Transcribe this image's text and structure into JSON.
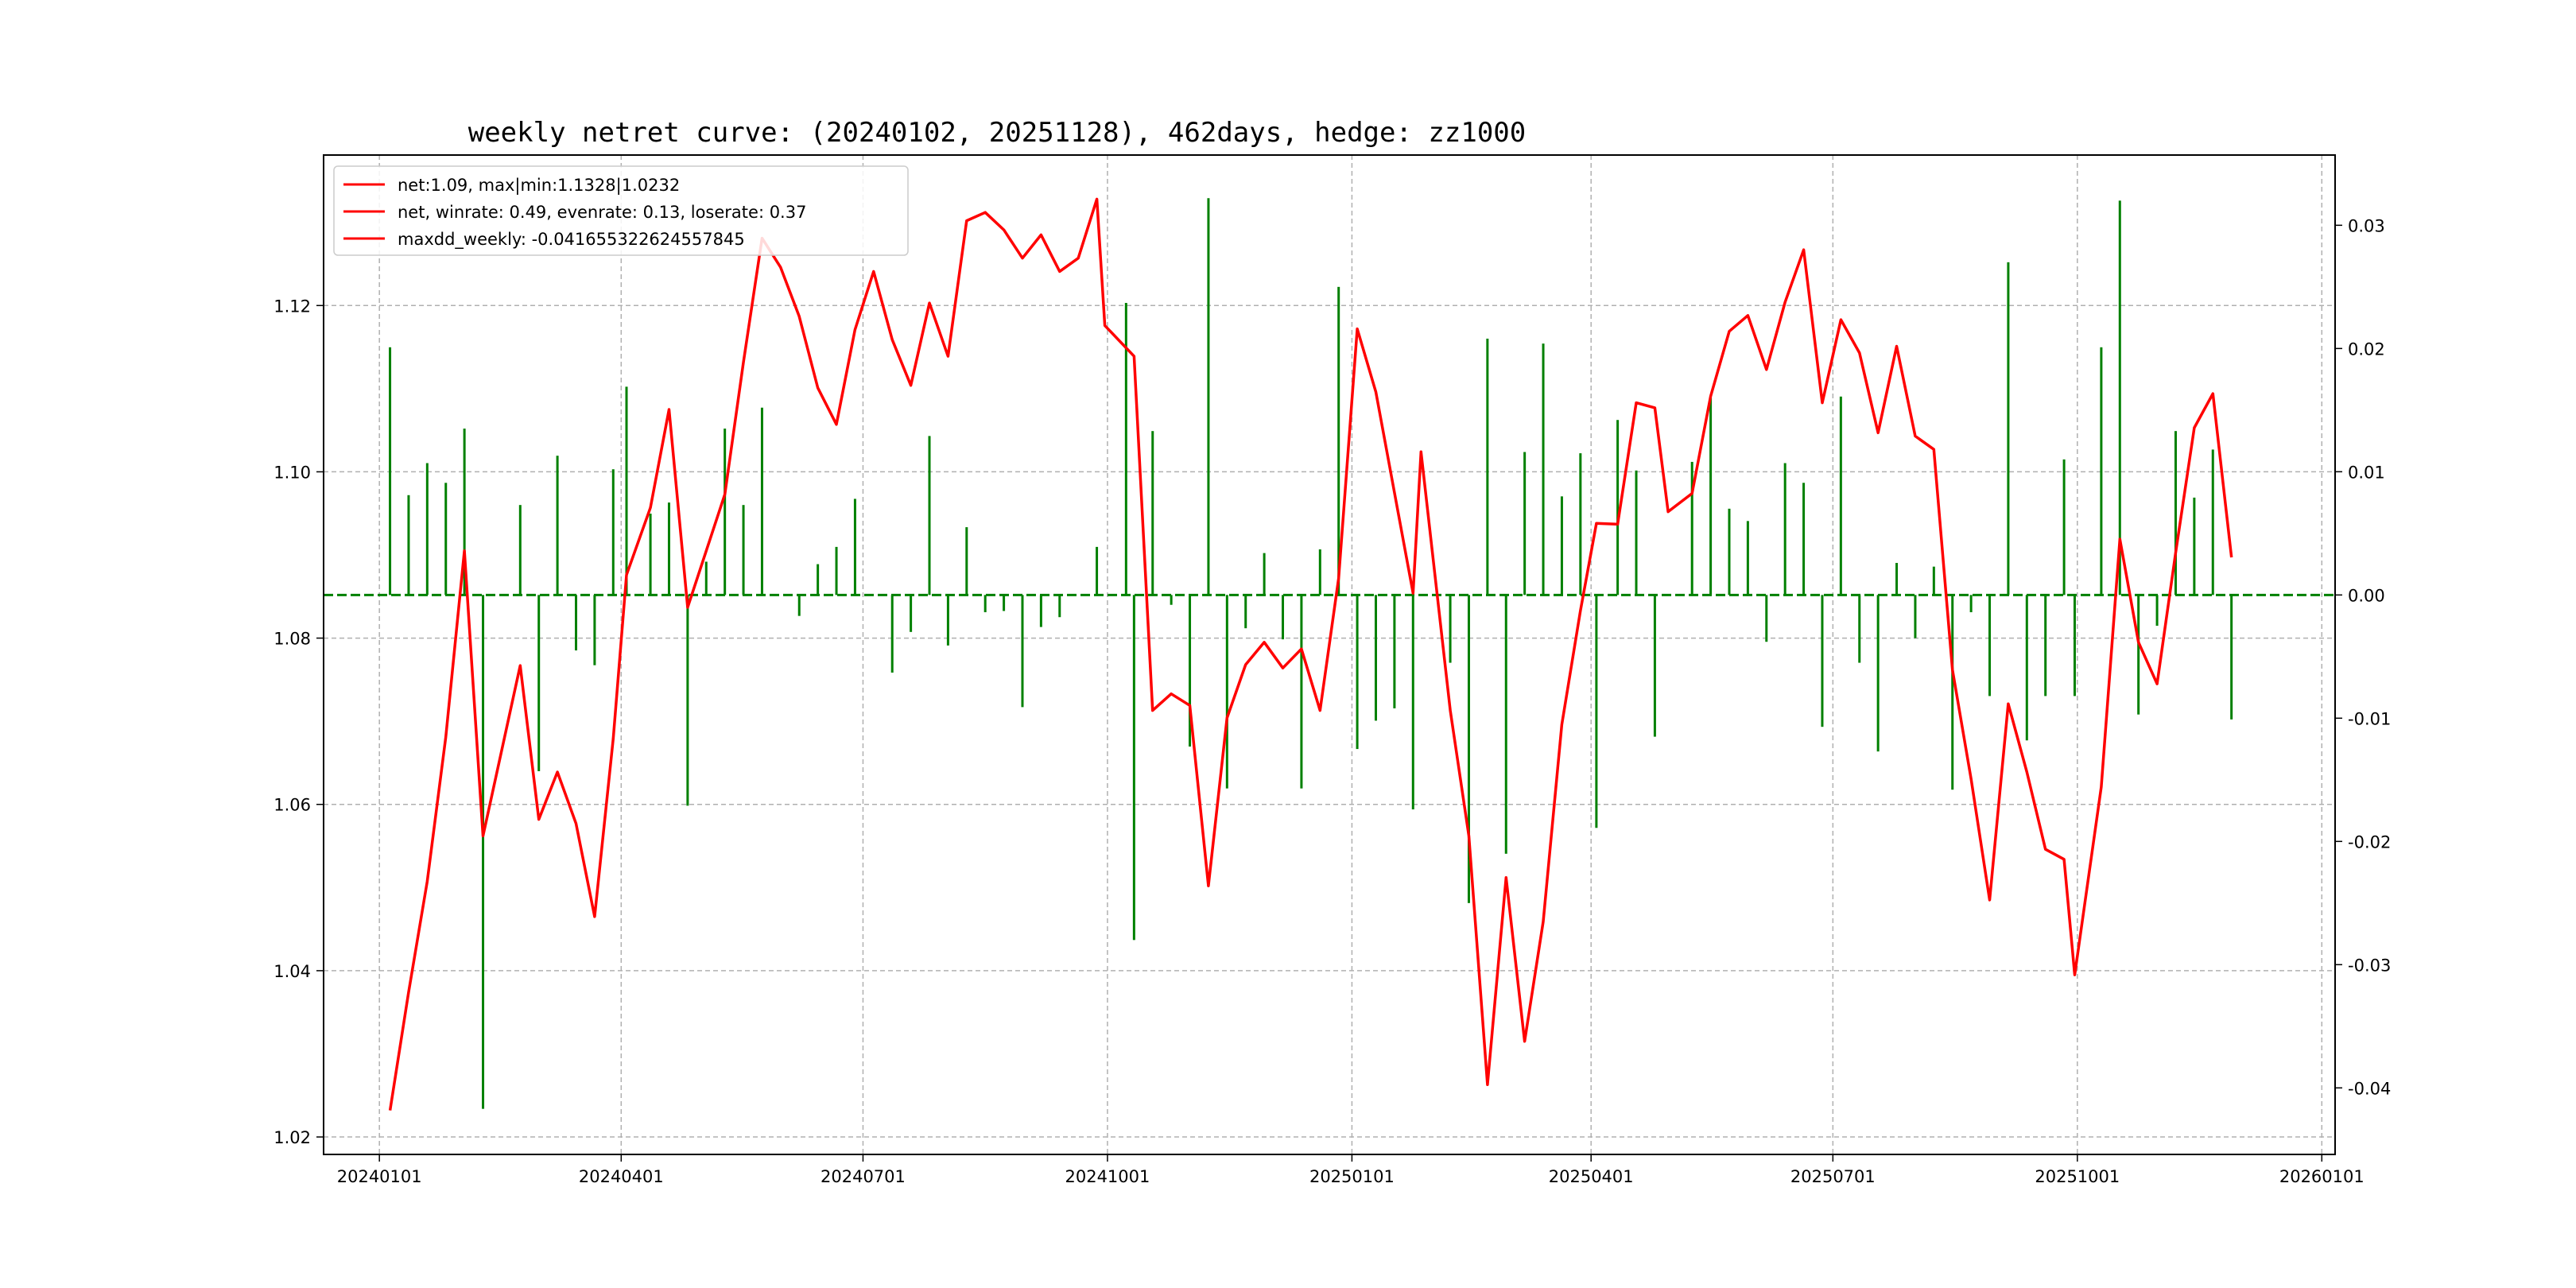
{
  "chart_data": {
    "type": "line",
    "title": "weekly netret curve: (20240102, 20251128), 462days, hedge: zz1000",
    "legend": {
      "position": "top-left",
      "entries": [
        "net:1.09, max|min:1.1328|1.0232",
        "net, winrate: 0.49, evenrate: 0.13, loserate: 0.37",
        "maxdd_weekly: -0.041655322624557845"
      ]
    },
    "x_axis": {
      "type": "date",
      "range": [
        "2023-12-11",
        "2026-01-06"
      ],
      "ticks": [
        "20240101",
        "20240401",
        "20240701",
        "20241001",
        "20250101",
        "20250401",
        "20250701",
        "20251001",
        "20260101"
      ],
      "tick_dates": [
        "2024-01-01",
        "2024-04-01",
        "2024-07-01",
        "2024-10-01",
        "2025-01-01",
        "2025-04-01",
        "2025-07-01",
        "2025-10-01",
        "2026-01-01"
      ]
    },
    "y_left": {
      "range": [
        1.0179,
        1.1381
      ],
      "ticks": [
        "1.02",
        "1.04",
        "1.06",
        "1.08",
        "1.10",
        "1.12"
      ],
      "tick_values": [
        1.02,
        1.04,
        1.06,
        1.08,
        1.1,
        1.12
      ]
    },
    "y_right": {
      "range": [
        -0.0454,
        0.0357
      ],
      "ticks": [
        "-0.04",
        "-0.03",
        "-0.02",
        "-0.01",
        "0.00",
        "0.01",
        "0.02",
        "0.03"
      ],
      "tick_values": [
        -0.04,
        -0.03,
        -0.02,
        -0.01,
        0.0,
        0.01,
        0.02,
        0.03
      ]
    },
    "grid": true,
    "colors": {
      "net_line": "#ff0000",
      "bars": "#008000",
      "zero_line": "#008000",
      "grid": "#b0b0b0"
    },
    "net_series": {
      "name": "net",
      "axis": "left",
      "points": [
        [
          "2024-01-05",
          1.0232
        ],
        [
          "2024-01-12",
          1.0374
        ],
        [
          "2024-01-19",
          1.0507
        ],
        [
          "2024-01-26",
          1.0681
        ],
        [
          "2024-02-02",
          1.0905
        ],
        [
          "2024-02-09",
          1.0562
        ],
        [
          "2024-02-23",
          1.0767
        ],
        [
          "2024-03-01",
          1.0582
        ],
        [
          "2024-03-08",
          1.0639
        ],
        [
          "2024-03-15",
          1.0577
        ],
        [
          "2024-03-22",
          1.0465
        ],
        [
          "2024-03-29",
          1.0679
        ],
        [
          "2024-04-03",
          1.0876
        ],
        [
          "2024-04-12",
          1.0957
        ],
        [
          "2024-04-19",
          1.1075
        ],
        [
          "2024-04-26",
          1.0837
        ],
        [
          "2024-05-10",
          1.0973
        ],
        [
          "2024-05-17",
          1.1132
        ],
        [
          "2024-05-24",
          1.1281
        ],
        [
          "2024-05-31",
          1.1246
        ],
        [
          "2024-06-07",
          1.1187
        ],
        [
          "2024-06-14",
          1.1101
        ],
        [
          "2024-06-21",
          1.1057
        ],
        [
          "2024-06-28",
          1.1171
        ],
        [
          "2024-07-05",
          1.1241
        ],
        [
          "2024-07-12",
          1.1159
        ],
        [
          "2024-07-19",
          1.1104
        ],
        [
          "2024-07-26",
          1.1203
        ],
        [
          "2024-08-02",
          1.1139
        ],
        [
          "2024-08-09",
          1.1302
        ],
        [
          "2024-08-16",
          1.1312
        ],
        [
          "2024-08-23",
          1.1291
        ],
        [
          "2024-08-30",
          1.1257
        ],
        [
          "2024-09-06",
          1.1285
        ],
        [
          "2024-09-13",
          1.1241
        ],
        [
          "2024-09-20",
          1.1257
        ],
        [
          "2024-09-27",
          1.1328
        ],
        [
          "2024-09-30",
          1.1176
        ],
        [
          "2024-10-11",
          1.1139
        ],
        [
          "2024-10-18",
          1.0713
        ],
        [
          "2024-10-25",
          1.0733
        ],
        [
          "2024-11-01",
          1.0719
        ],
        [
          "2024-11-08",
          1.0502
        ],
        [
          "2024-11-15",
          1.0704
        ],
        [
          "2024-11-22",
          1.0768
        ],
        [
          "2024-11-29",
          1.0795
        ],
        [
          "2024-12-06",
          1.0764
        ],
        [
          "2024-12-13",
          1.0787
        ],
        [
          "2024-12-20",
          1.0713
        ],
        [
          "2024-12-27",
          1.0872
        ],
        [
          "2025-01-03",
          1.1172
        ],
        [
          "2025-01-10",
          1.1096
        ],
        [
          "2025-01-17",
          1.0975
        ],
        [
          "2025-01-24",
          1.0854
        ],
        [
          "2025-01-27",
          1.1024
        ],
        [
          "2025-02-07",
          1.0713
        ],
        [
          "2025-02-14",
          1.0562
        ],
        [
          "2025-02-21",
          1.0263
        ],
        [
          "2025-02-28",
          1.0512
        ],
        [
          "2025-03-07",
          1.0315
        ],
        [
          "2025-03-14",
          1.0459
        ],
        [
          "2025-03-21",
          1.0696
        ],
        [
          "2025-03-28",
          1.0833
        ],
        [
          "2025-04-03",
          1.0938
        ],
        [
          "2025-04-11",
          1.0937
        ],
        [
          "2025-04-18",
          1.1083
        ],
        [
          "2025-04-25",
          1.1077
        ],
        [
          "2025-04-30",
          1.0952
        ],
        [
          "2025-05-09",
          1.0974
        ],
        [
          "2025-05-16",
          1.1091
        ],
        [
          "2025-05-23",
          1.1169
        ],
        [
          "2025-05-30",
          1.1188
        ],
        [
          "2025-06-06",
          1.1123
        ],
        [
          "2025-06-13",
          1.1204
        ],
        [
          "2025-06-20",
          1.1267
        ],
        [
          "2025-06-27",
          1.1083
        ],
        [
          "2025-07-04",
          1.1183
        ],
        [
          "2025-07-11",
          1.1143
        ],
        [
          "2025-07-18",
          1.1047
        ],
        [
          "2025-07-25",
          1.1151
        ],
        [
          "2025-08-01",
          1.1043
        ],
        [
          "2025-08-08",
          1.1027
        ],
        [
          "2025-08-15",
          1.0762
        ],
        [
          "2025-08-22",
          1.0631
        ],
        [
          "2025-08-29",
          1.0485
        ],
        [
          "2025-09-05",
          1.0721
        ],
        [
          "2025-09-12",
          1.0639
        ],
        [
          "2025-09-19",
          1.0546
        ],
        [
          "2025-09-26",
          1.0534
        ],
        [
          "2025-09-30",
          1.0395
        ],
        [
          "2025-10-10",
          1.0621
        ],
        [
          "2025-10-17",
          1.0919
        ],
        [
          "2025-10-24",
          1.0795
        ],
        [
          "2025-10-31",
          1.0745
        ],
        [
          "2025-11-07",
          1.0903
        ],
        [
          "2025-11-14",
          1.1053
        ],
        [
          "2025-11-21",
          1.1094
        ],
        [
          "2025-11-28",
          1.0897
        ]
      ]
    },
    "bar_series": {
      "name": "weekly return",
      "axis": "right",
      "points": [
        [
          "2024-01-05",
          0.0201
        ],
        [
          "2024-01-12",
          0.0081
        ],
        [
          "2024-01-19",
          0.0107
        ],
        [
          "2024-01-26",
          0.0091
        ],
        [
          "2024-02-02",
          0.0135
        ],
        [
          "2024-02-09",
          -0.0417
        ],
        [
          "2024-02-23",
          0.0073
        ],
        [
          "2024-03-01",
          -0.0143
        ],
        [
          "2024-03-08",
          0.0113
        ],
        [
          "2024-03-15",
          -0.0045
        ],
        [
          "2024-03-22",
          -0.0057
        ],
        [
          "2024-03-29",
          0.0102
        ],
        [
          "2024-04-03",
          0.0169
        ],
        [
          "2024-04-12",
          0.0066
        ],
        [
          "2024-04-19",
          0.0075
        ],
        [
          "2024-04-26",
          -0.0171
        ],
        [
          "2024-05-03",
          0.0027
        ],
        [
          "2024-05-10",
          0.0135
        ],
        [
          "2024-05-17",
          0.0073
        ],
        [
          "2024-05-24",
          0.0152
        ],
        [
          "2024-06-07",
          -0.0017
        ],
        [
          "2024-06-14",
          0.0025
        ],
        [
          "2024-06-21",
          0.0039
        ],
        [
          "2024-06-28",
          0.0078
        ],
        [
          "2024-07-12",
          -0.0063
        ],
        [
          "2024-07-19",
          -0.003
        ],
        [
          "2024-07-26",
          0.0129
        ],
        [
          "2024-08-02",
          -0.0041
        ],
        [
          "2024-08-09",
          0.0055
        ],
        [
          "2024-08-16",
          -0.0014
        ],
        [
          "2024-08-23",
          -0.0013
        ],
        [
          "2024-08-30",
          -0.0091
        ],
        [
          "2024-09-06",
          -0.0026
        ],
        [
          "2024-09-13",
          -0.0018
        ],
        [
          "2024-09-27",
          0.0039
        ],
        [
          "2024-10-08",
          0.0237
        ],
        [
          "2024-10-11",
          -0.028
        ],
        [
          "2024-10-18",
          0.0133
        ],
        [
          "2024-10-25",
          -0.0008
        ],
        [
          "2024-11-01",
          -0.0123
        ],
        [
          "2024-11-08",
          0.0322
        ],
        [
          "2024-11-15",
          -0.0157
        ],
        [
          "2024-11-22",
          -0.0027
        ],
        [
          "2024-11-29",
          0.0034
        ],
        [
          "2024-12-06",
          -0.0036
        ],
        [
          "2024-12-13",
          -0.0157
        ],
        [
          "2024-12-20",
          0.0037
        ],
        [
          "2024-12-27",
          0.025
        ],
        [
          "2025-01-03",
          -0.0125
        ],
        [
          "2025-01-10",
          -0.0102
        ],
        [
          "2025-01-17",
          -0.0092
        ],
        [
          "2025-01-24",
          -0.0174
        ],
        [
          "2025-02-07",
          -0.0055
        ],
        [
          "2025-02-14",
          -0.025
        ],
        [
          "2025-02-21",
          0.0208
        ],
        [
          "2025-02-28",
          -0.021
        ],
        [
          "2025-03-07",
          0.0116
        ],
        [
          "2025-03-14",
          0.0204
        ],
        [
          "2025-03-21",
          0.008
        ],
        [
          "2025-03-28",
          0.0115
        ],
        [
          "2025-04-03",
          -0.0189
        ],
        [
          "2025-04-11",
          0.0142
        ],
        [
          "2025-04-18",
          0.0101
        ],
        [
          "2025-04-25",
          -0.0115
        ],
        [
          "2025-05-09",
          0.0108
        ],
        [
          "2025-05-16",
          0.016
        ],
        [
          "2025-05-23",
          0.007
        ],
        [
          "2025-05-30",
          0.006
        ],
        [
          "2025-06-06",
          -0.0038
        ],
        [
          "2025-06-13",
          0.0107
        ],
        [
          "2025-06-20",
          0.0091
        ],
        [
          "2025-06-27",
          -0.0107
        ],
        [
          "2025-07-04",
          0.0161
        ],
        [
          "2025-07-11",
          -0.0055
        ],
        [
          "2025-07-18",
          -0.0127
        ],
        [
          "2025-07-25",
          0.0026
        ],
        [
          "2025-08-01",
          -0.0035
        ],
        [
          "2025-08-08",
          0.0023
        ],
        [
          "2025-08-15",
          -0.0158
        ],
        [
          "2025-08-22",
          -0.0014
        ],
        [
          "2025-08-29",
          -0.0082
        ],
        [
          "2025-09-05",
          0.027
        ],
        [
          "2025-09-12",
          -0.0118
        ],
        [
          "2025-09-19",
          -0.0082
        ],
        [
          "2025-09-26",
          0.011
        ],
        [
          "2025-09-30",
          -0.0082
        ],
        [
          "2025-10-10",
          0.0201
        ],
        [
          "2025-10-17",
          0.032
        ],
        [
          "2025-10-24",
          -0.0097
        ],
        [
          "2025-10-31",
          -0.0025
        ],
        [
          "2025-11-07",
          0.0133
        ],
        [
          "2025-11-14",
          0.0079
        ],
        [
          "2025-11-21",
          0.0118
        ],
        [
          "2025-11-28",
          -0.0101
        ]
      ]
    }
  }
}
